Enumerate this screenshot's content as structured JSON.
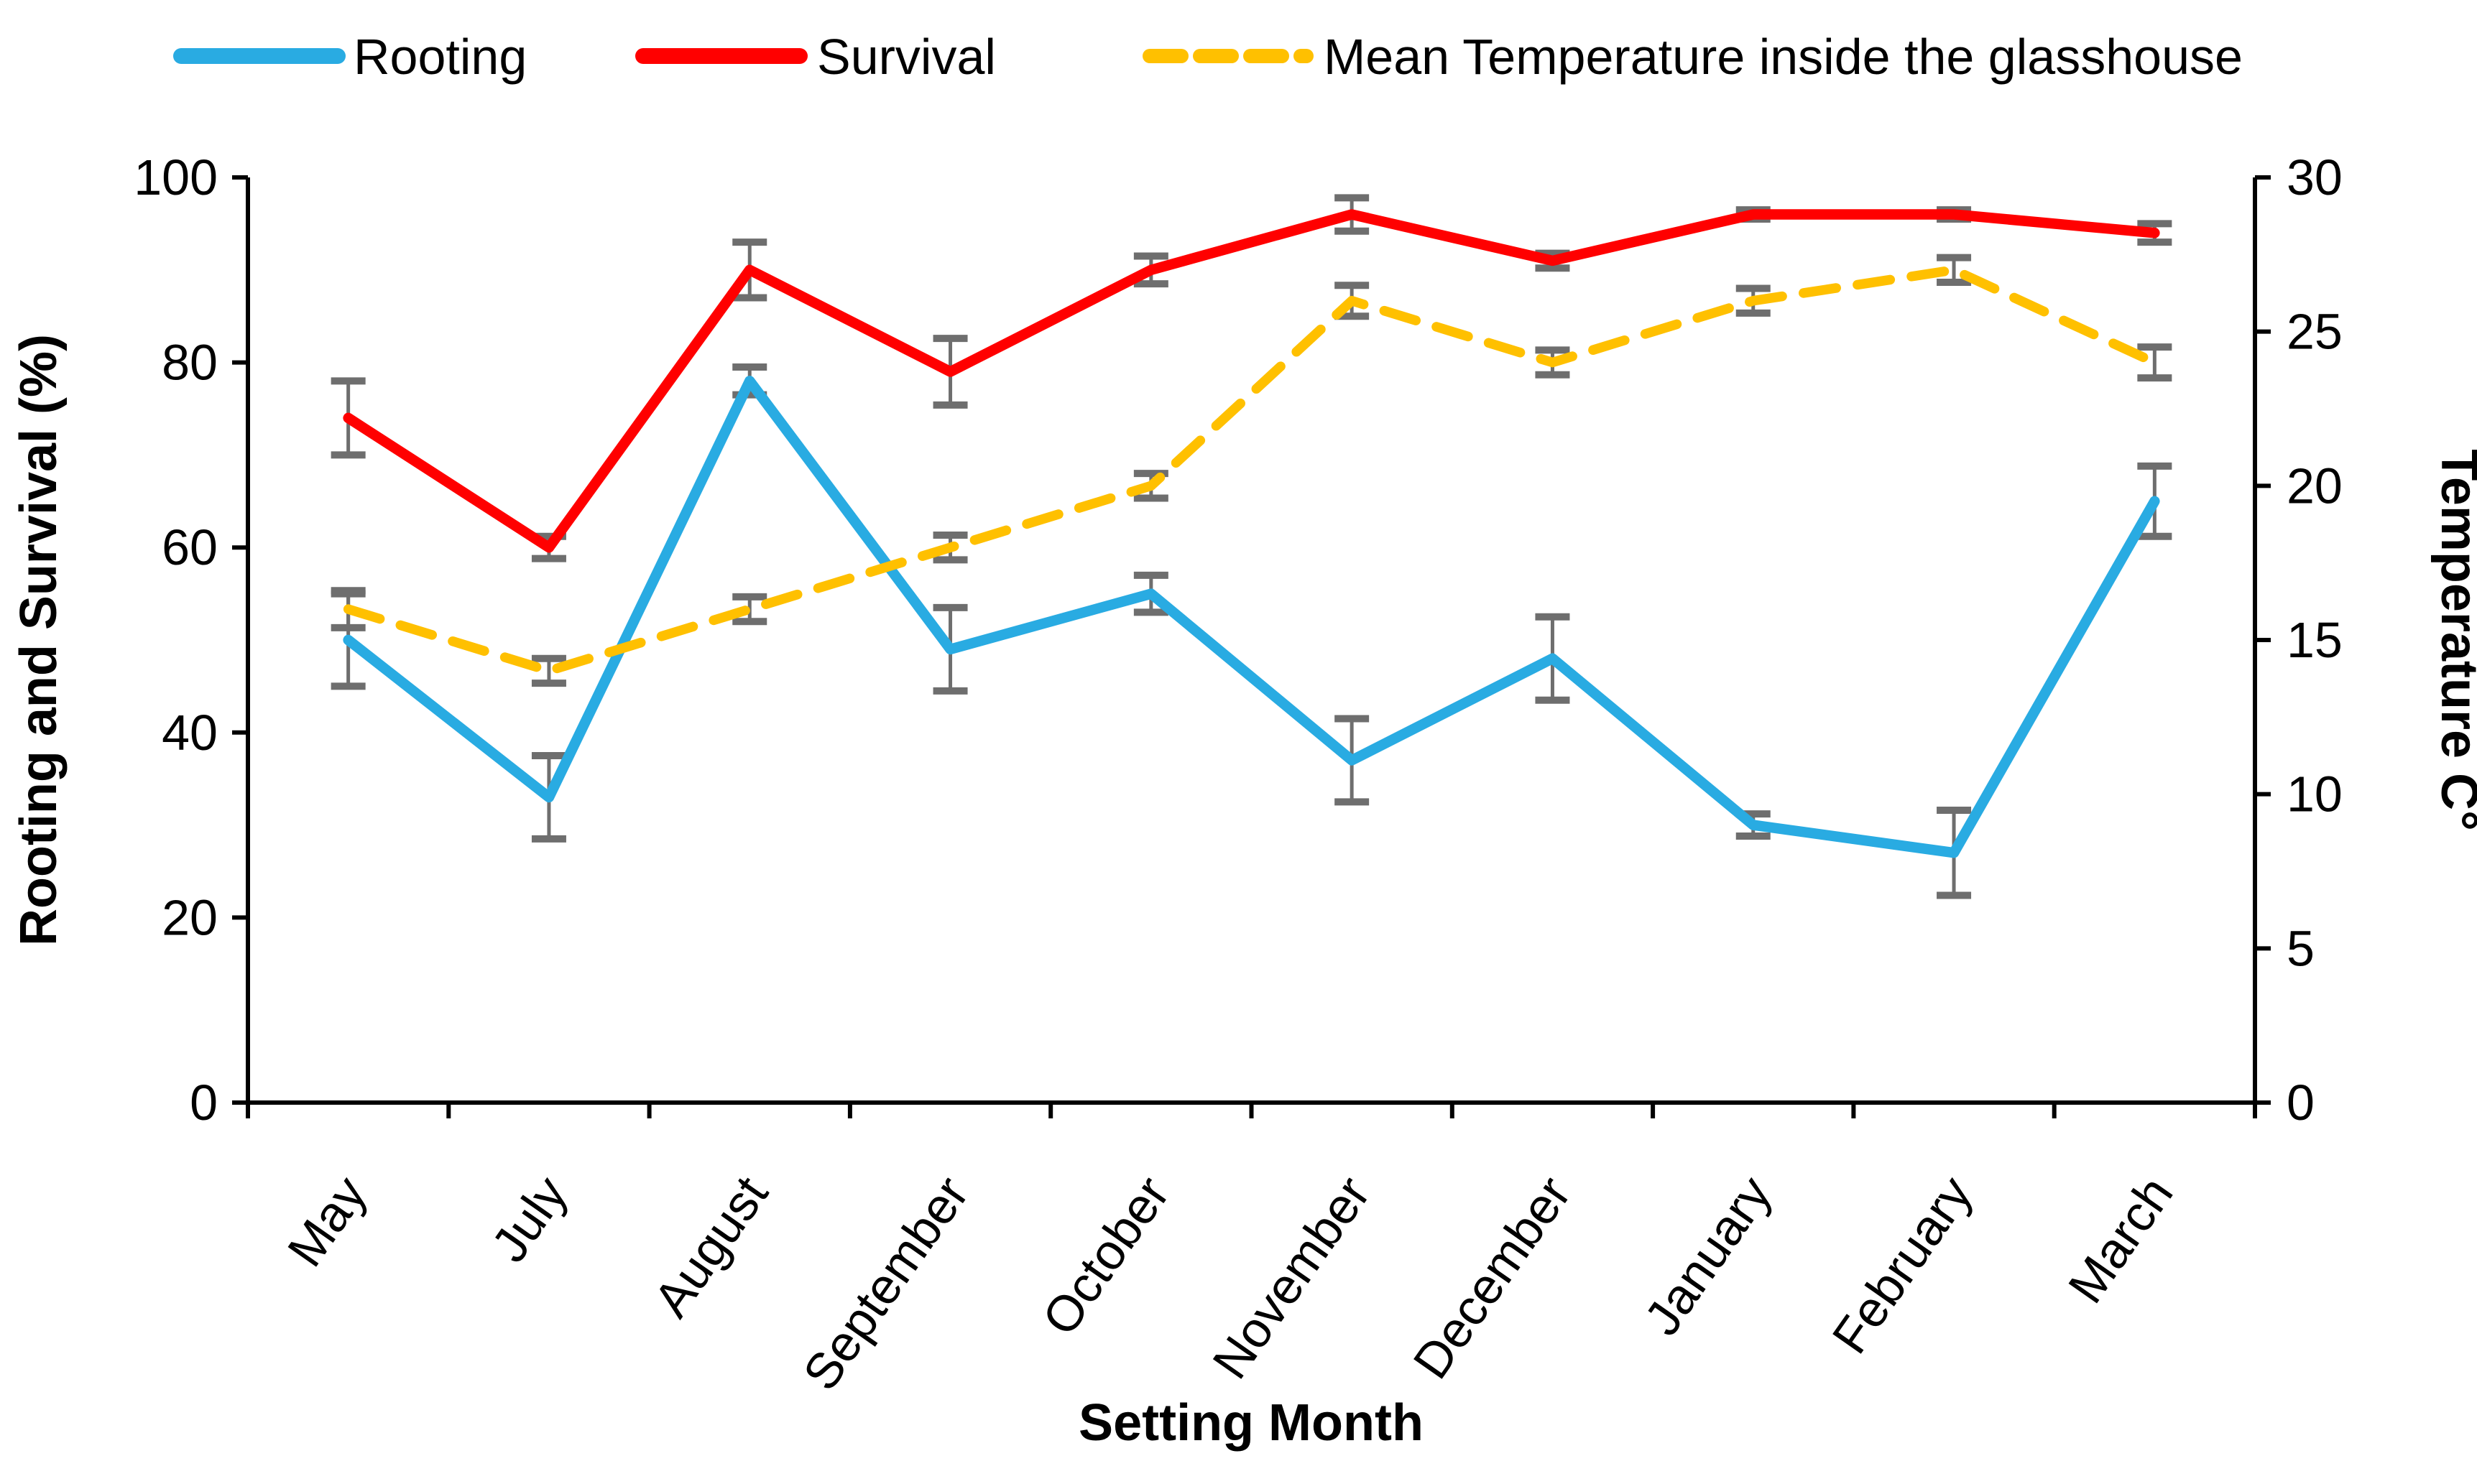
{
  "chart_data": {
    "type": "line",
    "title": "",
    "xlabel": "Setting Month",
    "ylabel_left": "Rooting and Survival (%)",
    "ylabel_right": "Temperature C°",
    "categories": [
      "May",
      "July",
      "August",
      "September",
      "October",
      "November",
      "December",
      "January",
      "February",
      "March"
    ],
    "left_axis": {
      "min": 0,
      "max": 100,
      "tick_step": 20,
      "tick_labels": [
        "0",
        "20",
        "40",
        "60",
        "80",
        "100"
      ]
    },
    "right_axis": {
      "min": 0,
      "max": 30,
      "tick_step": 5,
      "tick_labels": [
        "0",
        "5",
        "10",
        "15",
        "20",
        "25",
        "30"
      ]
    },
    "grid": false,
    "legend_position": "top",
    "series": [
      {
        "name": "Rooting",
        "axis": "left",
        "color": "#29ABE2",
        "dashed": false,
        "values": [
          50,
          33,
          78,
          49,
          55,
          37,
          48,
          30,
          27,
          65
        ],
        "errors": [
          5,
          4.5,
          1.5,
          4.5,
          2,
          4.5,
          4.5,
          1.2,
          4.6,
          3.8
        ]
      },
      {
        "name": "Survival",
        "axis": "left",
        "color": "#FF0000",
        "dashed": false,
        "values": [
          74,
          60,
          90,
          79,
          90,
          96,
          91,
          96,
          96,
          94
        ],
        "errors": [
          4,
          1.2,
          3,
          3.6,
          1.5,
          1.8,
          0.8,
          0.5,
          0.5,
          1
        ]
      },
      {
        "name": "Mean Temperature inside the glasshouse",
        "axis": "right",
        "color": "#FFC000",
        "dashed": true,
        "values": [
          16,
          14,
          16,
          18,
          20,
          26,
          24,
          26,
          27,
          24
        ],
        "errors": [
          0.6,
          0.4,
          0.4,
          0.4,
          0.4,
          0.5,
          0.4,
          0.4,
          0.4,
          0.5
        ]
      }
    ],
    "error_bar_color": "#6e6e6e"
  }
}
